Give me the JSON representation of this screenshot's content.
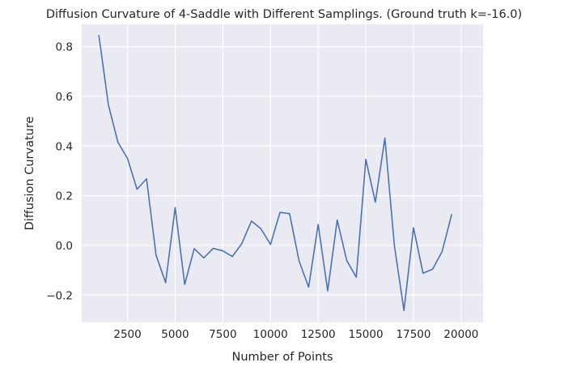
{
  "chart_data": {
    "type": "line",
    "title": "Diffusion Curvature of 4-Saddle with Different Samplings. (Ground truth k=-16.0)",
    "xlabel": "Number of Points",
    "ylabel": "Diffusion Curvature",
    "xlim": [
      100,
      21150
    ],
    "ylim": [
      -0.31,
      0.89
    ],
    "xticks": [
      2500,
      5000,
      7500,
      10000,
      12500,
      15000,
      17500,
      20000
    ],
    "xtick_labels": [
      "2500",
      "5000",
      "7500",
      "10000",
      "12500",
      "15000",
      "17500",
      "20000"
    ],
    "yticks": [
      -0.2,
      0.0,
      0.2,
      0.4,
      0.6,
      0.8
    ],
    "ytick_labels": [
      "−0.2",
      "0.0",
      "0.2",
      "0.4",
      "0.6",
      "0.8"
    ],
    "grid": true,
    "legend": "none",
    "colors": {
      "background": "#eaeaf2",
      "grid": "#ffffff",
      "line": "#4c72b0",
      "text": "#262626"
    },
    "series": [
      {
        "x": [
          1000,
          1500,
          2000,
          2500,
          3000,
          3500,
          4000,
          4500,
          5000,
          5500,
          6000,
          6500,
          7000,
          7500,
          8000,
          8500,
          9000,
          9500,
          10000,
          10500,
          11000,
          11500,
          12000,
          12500,
          13000,
          13500,
          14000,
          14500,
          15000,
          15500,
          16000,
          16500,
          17000,
          17500,
          18000,
          18500,
          19000,
          19500
        ],
        "values": [
          0.845,
          0.565,
          0.415,
          0.35,
          0.226,
          0.268,
          -0.04,
          -0.15,
          0.152,
          -0.157,
          -0.013,
          -0.05,
          -0.012,
          -0.022,
          -0.045,
          0.008,
          0.098,
          0.067,
          0.004,
          0.133,
          0.128,
          -0.063,
          -0.168,
          0.084,
          -0.183,
          0.102,
          -0.061,
          -0.128,
          0.346,
          0.174,
          0.432,
          -0.002,
          -0.262,
          0.071,
          -0.112,
          -0.096,
          -0.025,
          0.124
        ]
      }
    ]
  }
}
